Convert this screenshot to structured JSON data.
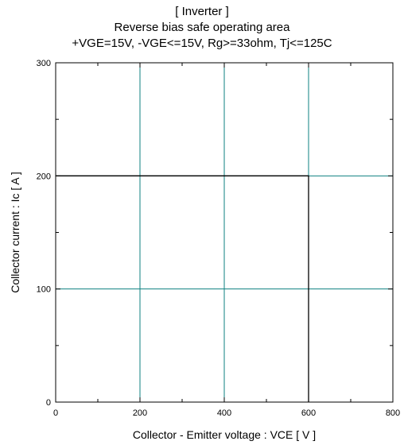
{
  "chart_data": {
    "type": "line",
    "title_lines": [
      "[ Inverter ]",
      "Reverse bias safe operating area",
      "+VGE=15V, -VGE<=15V, Rg>=33ohm, Tj<=125C"
    ],
    "xlabel": "Collector - Emitter voltage  :  VCE  [ V ]",
    "ylabel": "Collector current : Ic  [ A ]",
    "xlim": [
      0,
      800
    ],
    "ylim": [
      0,
      300
    ],
    "x_ticks": [
      0,
      200,
      400,
      600,
      800
    ],
    "y_ticks": [
      0,
      100,
      200,
      300
    ],
    "x_tick_labels": [
      "0",
      "200",
      "400",
      "600",
      "800"
    ],
    "y_tick_labels": [
      "0",
      "100",
      "200",
      "300"
    ],
    "grid": true,
    "series": [
      {
        "x": [
          0,
          600,
          600
        ],
        "y": [
          200,
          200,
          0
        ],
        "color": "#000000"
      }
    ],
    "colors": {
      "grid": "#0e8080",
      "frame": "#000000",
      "series": "#000000"
    }
  }
}
